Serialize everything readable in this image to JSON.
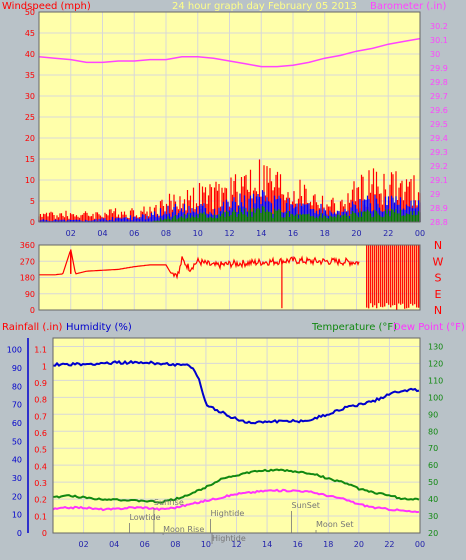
{
  "colors": {
    "background": "#b9c2c8",
    "plot": "#ffffaa",
    "grid": "#d8d8d8",
    "wind_gust": "#ff0000",
    "wind_avg": "#0000ff",
    "wind_low": "#008000",
    "barometer": "#ff44ff",
    "direction": "#ff0000",
    "humidity": "#0000cc",
    "temperature": "#118811",
    "dew_point": "#ff33ff",
    "rain": "#ff0000",
    "label_gray": "#777777"
  },
  "chart_data": [
    {
      "type": "line",
      "title": "24 hour graph day   February 05 2013",
      "ylabel_left": "Windspeed (mph)",
      "ylabel_right": "Barometer (.in)",
      "x_ticks": [
        "02",
        "04",
        "06",
        "08",
        "10",
        "12",
        "14",
        "16",
        "18",
        "20",
        "22",
        "00"
      ],
      "ylim_left": [
        0,
        50
      ],
      "yticks_left": [
        "0",
        "5",
        "10",
        "15",
        "20",
        "25",
        "30",
        "35",
        "40",
        "45",
        "50"
      ],
      "ylim_right": [
        28.8,
        30.3
      ],
      "yticks_right": [
        "28.8",
        "28.9",
        "29",
        "29.1",
        "29.2",
        "29.3",
        "29.4",
        "29.5",
        "29.6",
        "29.7",
        "29.8",
        "29.9",
        "30",
        "30.1",
        "30.2"
      ],
      "grid": true,
      "series": [
        {
          "key": "barometer",
          "axis": "right",
          "color_key": "barometer",
          "points": [
            [
              0,
              29.98
            ],
            [
              1,
              29.97
            ],
            [
              2,
              29.96
            ],
            [
              3,
              29.94
            ],
            [
              4,
              29.94
            ],
            [
              5,
              29.95
            ],
            [
              6,
              29.95
            ],
            [
              7,
              29.96
            ],
            [
              8,
              29.96
            ],
            [
              9,
              29.98
            ],
            [
              10,
              29.98
            ],
            [
              11,
              29.97
            ],
            [
              12,
              29.95
            ],
            [
              13,
              29.93
            ],
            [
              14,
              29.91
            ],
            [
              15,
              29.91
            ],
            [
              16,
              29.92
            ],
            [
              17,
              29.94
            ],
            [
              18,
              29.97
            ],
            [
              19,
              29.99
            ],
            [
              20,
              30.02
            ],
            [
              21,
              30.04
            ],
            [
              22,
              30.07
            ],
            [
              23,
              30.09
            ],
            [
              24,
              30.11
            ]
          ]
        },
        {
          "key": "wind_gust",
          "axis": "left",
          "color_key": "wind_gust",
          "points": [
            [
              0,
              2
            ],
            [
              3,
              2
            ],
            [
              5,
              2.5
            ],
            [
              7,
              3
            ],
            [
              8,
              5
            ],
            [
              9,
              6
            ],
            [
              10,
              7
            ],
            [
              11,
              7
            ],
            [
              12,
              8
            ],
            [
              13,
              11
            ],
            [
              14,
              12
            ],
            [
              15,
              10
            ],
            [
              16,
              8
            ],
            [
              17,
              7
            ],
            [
              18,
              5
            ],
            [
              19,
              4
            ],
            [
              20,
              8
            ],
            [
              21,
              10
            ],
            [
              22,
              10
            ],
            [
              23,
              9
            ],
            [
              24,
              8
            ]
          ]
        },
        {
          "key": "wind_avg",
          "axis": "left",
          "color_key": "wind_avg",
          "points": [
            [
              0,
              0.5
            ],
            [
              3,
              0.5
            ],
            [
              5,
              1
            ],
            [
              7,
              1.5
            ],
            [
              8,
              3
            ],
            [
              9,
              3.5
            ],
            [
              10,
              4
            ],
            [
              11,
              4
            ],
            [
              12,
              5
            ],
            [
              13,
              5.5
            ],
            [
              14,
              6
            ],
            [
              15,
              5
            ],
            [
              16,
              4.5
            ],
            [
              17,
              4
            ],
            [
              18,
              3
            ],
            [
              19,
              2.5
            ],
            [
              20,
              4
            ],
            [
              21,
              5
            ],
            [
              22,
              5
            ],
            [
              23,
              4.5
            ],
            [
              24,
              4
            ]
          ]
        },
        {
          "key": "wind_low",
          "axis": "left",
          "color_key": "wind_low",
          "points": [
            [
              0,
              0
            ],
            [
              7,
              0
            ],
            [
              8,
              1
            ],
            [
              10,
              2
            ],
            [
              12,
              2.5
            ],
            [
              14,
              3
            ],
            [
              16,
              2
            ],
            [
              18,
              1.5
            ],
            [
              20,
              2
            ],
            [
              22,
              2.5
            ],
            [
              24,
              2
            ]
          ]
        }
      ]
    },
    {
      "type": "scatter",
      "ylabel_left": "",
      "yticks": [
        "0",
        "90",
        "180",
        "270",
        "360"
      ],
      "ylim": [
        0,
        360
      ],
      "right_labels": [
        "N",
        "W",
        "S",
        "E",
        "N"
      ],
      "x_ticks": [
        "02",
        "04",
        "06",
        "08",
        "10",
        "12",
        "14",
        "16",
        "18",
        "20",
        "22",
        "00"
      ],
      "series": [
        {
          "key": "wind_direction",
          "color_key": "direction",
          "points": [
            [
              0,
              195
            ],
            [
              1,
              195
            ],
            [
              1.5,
              200
            ],
            [
              2,
              335
            ],
            [
              2.3,
              200
            ],
            [
              3,
              215
            ],
            [
              4,
              220
            ],
            [
              5,
              225
            ],
            [
              6,
              240
            ],
            [
              7,
              250
            ],
            [
              8,
              250
            ],
            [
              8.3,
              205
            ],
            [
              8.8,
              200
            ],
            [
              9,
              280
            ],
            [
              9.5,
              230
            ],
            [
              10,
              270
            ],
            [
              11,
              245
            ],
            [
              12,
              255
            ],
            [
              13,
              260
            ],
            [
              14,
              265
            ],
            [
              15,
              270
            ],
            [
              16,
              275
            ],
            [
              17,
              270
            ],
            [
              18,
              270
            ],
            [
              19,
              268
            ],
            [
              20,
              265
            ],
            [
              21,
              260
            ],
            [
              21.5,
              200
            ],
            [
              22,
              180
            ],
            [
              23,
              200
            ],
            [
              24,
              190
            ]
          ]
        }
      ]
    },
    {
      "type": "line",
      "ylabel_left_1": "Rainfall (.in)",
      "ylabel_left_2": "Humidity (%)",
      "ylabel_right_1": "Temperature (°F)",
      "ylabel_right_2": "Dew Point (°F)",
      "yticks_rain": [
        "0",
        "0.1",
        "0.2",
        "0.3",
        "0.4",
        "0.5",
        "0.6",
        "0.7",
        "0.8",
        "0.9",
        "1",
        "1.1"
      ],
      "yticks_humidity": [
        "0",
        "10",
        "20",
        "30",
        "40",
        "50",
        "60",
        "70",
        "80",
        "90",
        "100"
      ],
      "yticks_temp": [
        "20",
        "30",
        "40",
        "50",
        "60",
        "70",
        "80",
        "90",
        "100",
        "110",
        "120",
        "130"
      ],
      "ylim_temp": [
        20,
        135
      ],
      "ylim_humidity": [
        0,
        100
      ],
      "x_ticks": [
        "02",
        "04",
        "06",
        "08",
        "10",
        "12",
        "14",
        "16",
        "18",
        "20",
        "22",
        "00"
      ],
      "annotations": [
        "Sunrise",
        "Lowtide",
        "Moon Rise",
        "Hightide",
        "Hightide",
        "SunSet",
        "Moon Set"
      ],
      "series": [
        {
          "key": "humidity",
          "axis": "humidity",
          "color_key": "humidity",
          "points": [
            [
              0,
              92
            ],
            [
              2,
              92
            ],
            [
              4,
              93
            ],
            [
              6,
              93
            ],
            [
              8,
              92
            ],
            [
              9,
              91
            ],
            [
              9.5,
              85
            ],
            [
              10,
              70
            ],
            [
              11,
              66
            ],
            [
              12,
              62
            ],
            [
              13,
              60
            ],
            [
              14,
              61
            ],
            [
              15,
              61
            ],
            [
              16,
              61
            ],
            [
              17,
              62
            ],
            [
              18,
              65
            ],
            [
              19,
              68
            ],
            [
              20,
              70
            ],
            [
              21,
              72
            ],
            [
              22,
              76
            ],
            [
              23,
              78
            ],
            [
              24,
              78
            ]
          ]
        },
        {
          "key": "temperature",
          "axis": "temp",
          "color_key": "temperature",
          "points": [
            [
              0,
              41
            ],
            [
              1,
              42
            ],
            [
              2,
              41
            ],
            [
              3,
              40
            ],
            [
              4,
              40
            ],
            [
              5,
              39
            ],
            [
              6,
              39
            ],
            [
              7,
              38
            ],
            [
              8,
              40
            ],
            [
              9,
              43
            ],
            [
              10,
              47
            ],
            [
              11,
              52
            ],
            [
              12,
              54
            ],
            [
              13,
              56
            ],
            [
              14,
              57
            ],
            [
              15,
              57
            ],
            [
              16,
              56
            ],
            [
              17,
              55
            ],
            [
              18,
              52
            ],
            [
              19,
              50
            ],
            [
              20,
              46
            ],
            [
              21,
              44
            ],
            [
              22,
              42
            ],
            [
              23,
              40
            ],
            [
              24,
              40
            ]
          ]
        },
        {
          "key": "dew_point",
          "axis": "temp",
          "color_key": "dew_point",
          "points": [
            [
              0,
              34
            ],
            [
              1,
              35
            ],
            [
              2,
              35
            ],
            [
              3,
              34
            ],
            [
              4,
              34
            ],
            [
              5,
              35
            ],
            [
              6,
              35
            ],
            [
              7,
              34
            ],
            [
              8,
              35
            ],
            [
              9,
              37
            ],
            [
              10,
              39
            ],
            [
              11,
              41
            ],
            [
              12,
              43
            ],
            [
              13,
              44
            ],
            [
              14,
              45
            ],
            [
              15,
              45
            ],
            [
              16,
              45
            ],
            [
              17,
              44
            ],
            [
              18,
              42
            ],
            [
              19,
              40
            ],
            [
              20,
              37
            ],
            [
              21,
              35
            ],
            [
              22,
              34
            ],
            [
              23,
              33
            ],
            [
              24,
              32
            ]
          ]
        }
      ]
    }
  ]
}
